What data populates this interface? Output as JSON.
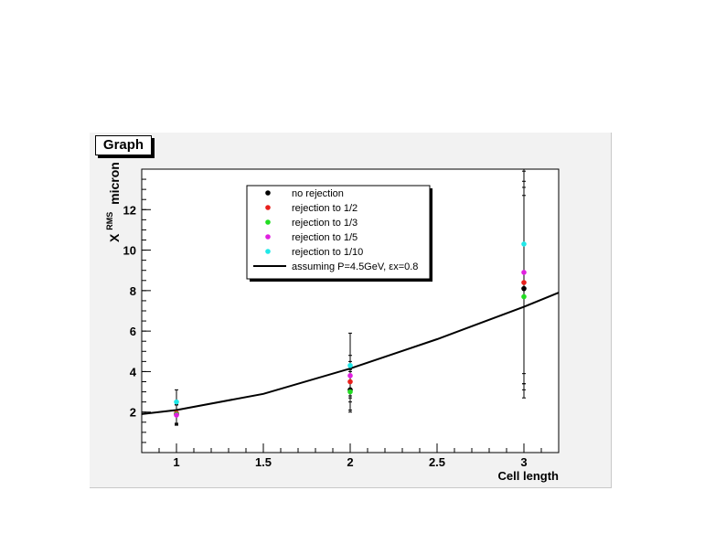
{
  "title": "Graph",
  "chart_data": {
    "type": "scatter",
    "xlabel": "Cell length",
    "ylabel_main": "X",
    "ylabel_sup": "RMS",
    "ylabel_unit": "micron",
    "xlim": [
      0.8,
      3.2
    ],
    "ylim": [
      0,
      14
    ],
    "xticks": [
      "1",
      "1.5",
      "2",
      "2.5",
      "3"
    ],
    "xtick_values": [
      1,
      1.5,
      2,
      2.5,
      3
    ],
    "yticks": [
      "2",
      "4",
      "6",
      "8",
      "10",
      "12"
    ],
    "ytick_values": [
      2,
      4,
      6,
      8,
      10,
      12
    ],
    "grid": false,
    "legend_position": "top-center",
    "series": [
      {
        "name": "no rejection",
        "color": "#000000",
        "points": [
          {
            "x": 1,
            "y": 1.9,
            "err": 0.5
          },
          {
            "x": 2,
            "y": 3.1,
            "err": 1.0
          },
          {
            "x": 3,
            "y": 8.1,
            "err": 5.0
          }
        ]
      },
      {
        "name": "rejection to 1/2",
        "color": "#e8201c",
        "points": [
          {
            "x": 1,
            "y": 1.95,
            "err": 0.5
          },
          {
            "x": 2,
            "y": 3.5,
            "err": 1.0
          },
          {
            "x": 3,
            "y": 8.4,
            "err": 5.0
          }
        ]
      },
      {
        "name": "rejection to 1/3",
        "color": "#22dd22",
        "points": [
          {
            "x": 1,
            "y": 1.9,
            "err": 0.5
          },
          {
            "x": 2,
            "y": 3.0,
            "err": 1.0
          },
          {
            "x": 3,
            "y": 7.7,
            "err": 5.0
          }
        ]
      },
      {
        "name": "rejection to 1/5",
        "color": "#e020e0",
        "points": [
          {
            "x": 1,
            "y": 1.85,
            "err": 0.5
          },
          {
            "x": 2,
            "y": 3.8,
            "err": 1.0
          },
          {
            "x": 3,
            "y": 8.9,
            "err": 5.0
          }
        ]
      },
      {
        "name": "rejection to 1/10",
        "color": "#20e8e8",
        "points": [
          {
            "x": 1,
            "y": 2.5,
            "err": 0.6
          },
          {
            "x": 2,
            "y": 4.3,
            "err": 1.6
          },
          {
            "x": 3,
            "y": 10.3,
            "err": 6.9
          }
        ]
      }
    ],
    "curve": {
      "name": "assuming P=4.5GeV, εx=0.8",
      "color": "#000000",
      "points": [
        [
          0.8,
          1.9
        ],
        [
          1.0,
          2.1
        ],
        [
          1.5,
          2.9
        ],
        [
          2.0,
          4.15
        ],
        [
          2.5,
          5.6
        ],
        [
          3.0,
          7.2
        ],
        [
          3.2,
          7.9
        ]
      ]
    }
  }
}
